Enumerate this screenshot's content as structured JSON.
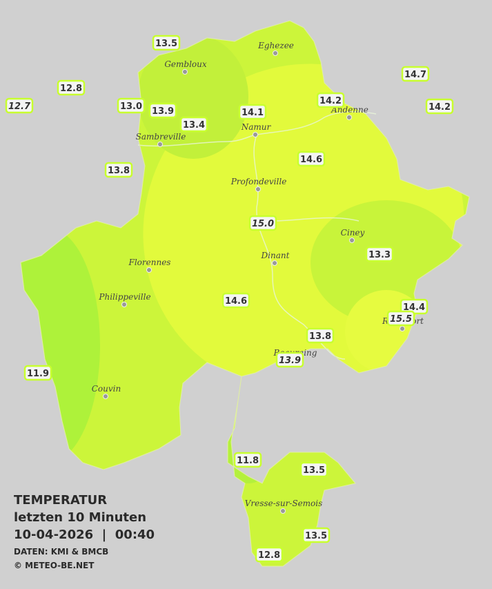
{
  "caption": {
    "title": "TEMPERATUR",
    "period": "letzten 10 Minuten",
    "timestamp": "10-04-2026  |  00:40",
    "source": "DATEN: KMI & BMCB",
    "copyright": "© METEO-BE.NET"
  },
  "cities": [
    {
      "name": "Eghezee"
    },
    {
      "name": "Gembloux"
    },
    {
      "name": "Andenne"
    },
    {
      "name": "Namur"
    },
    {
      "name": "Sambreville"
    },
    {
      "name": "Profondeville"
    },
    {
      "name": "Ciney"
    },
    {
      "name": "Dinant"
    },
    {
      "name": "Florennes"
    },
    {
      "name": "Philippeville"
    },
    {
      "name": "Beauraing"
    },
    {
      "name": "Rochefort"
    },
    {
      "name": "Couvin"
    },
    {
      "name": "Vresse-sur-Semois"
    }
  ],
  "stations": [
    {
      "label": "13.5",
      "italic": false
    },
    {
      "label": "12.8",
      "italic": false
    },
    {
      "label": "12.7",
      "italic": true
    },
    {
      "label": "13.0",
      "italic": false
    },
    {
      "label": "13.9",
      "italic": false
    },
    {
      "label": "13.4",
      "italic": false
    },
    {
      "label": "14.1",
      "italic": false
    },
    {
      "label": "14.2",
      "italic": false
    },
    {
      "label": "14.7",
      "italic": false
    },
    {
      "label": "14.2",
      "italic": false
    },
    {
      "label": "14.6",
      "italic": false
    },
    {
      "label": "13.8",
      "italic": false
    },
    {
      "label": "15.0",
      "italic": true
    },
    {
      "label": "13.3",
      "italic": false
    },
    {
      "label": "14.6",
      "italic": false
    },
    {
      "label": "14.4",
      "italic": false
    },
    {
      "label": "15.5",
      "italic": true
    },
    {
      "label": "13.8",
      "italic": false
    },
    {
      "label": "13.9",
      "italic": true
    },
    {
      "label": "11.9",
      "italic": false
    },
    {
      "label": "11.8",
      "italic": false
    },
    {
      "label": "13.5",
      "italic": false
    },
    {
      "label": "13.5",
      "italic": false
    },
    {
      "label": "12.8",
      "italic": false
    }
  ]
}
